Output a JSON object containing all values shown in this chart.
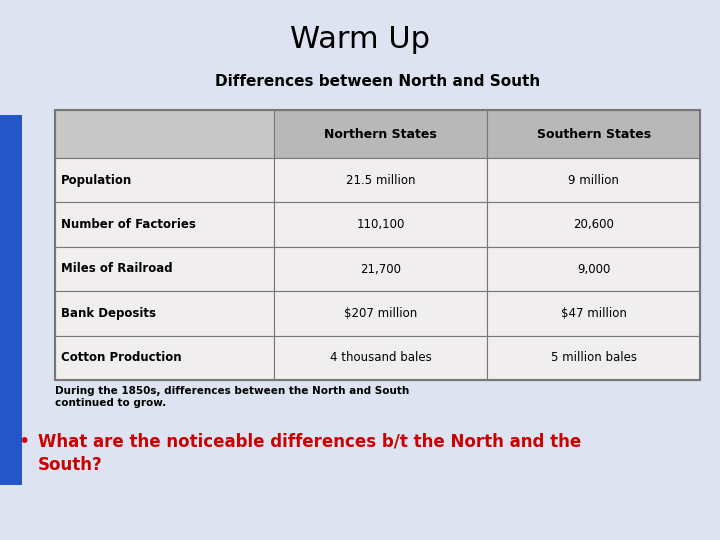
{
  "title": "Warm Up",
  "bg_color": "#dde3f0",
  "sidebar_color": "#2456c8",
  "table_title": "Differences between North and South",
  "col_headers": [
    "",
    "Northern States",
    "Southern States"
  ],
  "rows": [
    [
      "Population",
      "21.5 million",
      "9 million"
    ],
    [
      "Number of Factories",
      "110,100",
      "20,600"
    ],
    [
      "Miles of Railroad",
      "21,700",
      "9,000"
    ],
    [
      "Bank Deposits",
      "$207 million",
      "$47 million"
    ],
    [
      "Cotton Production",
      "4 thousand bales",
      "5 million bales"
    ]
  ],
  "footer_text": "During the 1850s, differences between the North and South\ncontinued to grow.",
  "bullet_text": "What are the noticeable differences b/t the North and the\nSouth?",
  "header_bg": "#b8b8b8",
  "row_bg": "#f0eeee",
  "table_border": "#777777",
  "title_fontsize": 22,
  "table_title_fontsize": 11,
  "col_header_fontsize": 9,
  "cell_fontsize": 8.5,
  "footer_fontsize": 7.5,
  "bullet_fontsize": 12,
  "bullet_color": "#cc0000"
}
